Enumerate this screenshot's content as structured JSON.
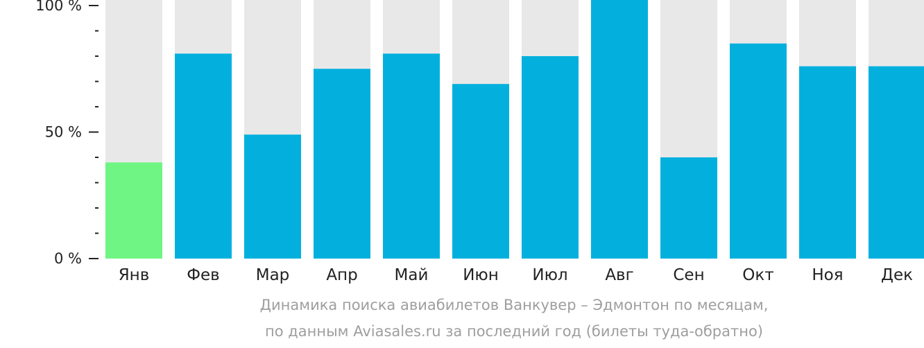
{
  "chart_data": {
    "type": "bar",
    "categories": [
      "Янв",
      "Фев",
      "Мар",
      "Апр",
      "Май",
      "Июн",
      "Июл",
      "Авг",
      "Сен",
      "Окт",
      "Ноя",
      "Дек"
    ],
    "values": [
      38,
      81,
      49,
      75,
      81,
      69,
      80,
      100,
      40,
      85,
      76,
      76
    ],
    "ylim": [
      0,
      100
    ],
    "yticks": [
      {
        "value": 0,
        "label": "0 %"
      },
      {
        "value": 50,
        "label": "50 %"
      },
      {
        "value": 100,
        "label": "100 %"
      }
    ],
    "minor_tick_step": 10,
    "highlight_index": 0,
    "colors": {
      "bar": "#03b0dd",
      "highlight": "#6ef584",
      "background_bar": "#e8e8e8",
      "axis": "#222222"
    }
  },
  "caption": {
    "line1": "Динамика поиска авиабилетов Ванкувер – Эдмонтон по месяцам,",
    "line2": "по данным Aviasales.ru за последний год (билеты туда-обратно)"
  }
}
